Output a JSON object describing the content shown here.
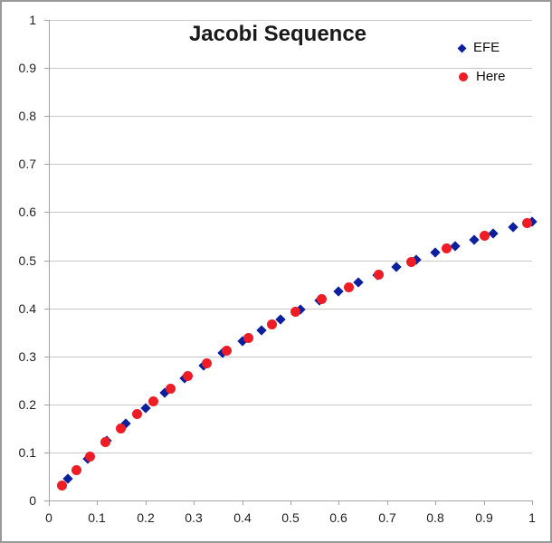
{
  "chart_data": {
    "type": "scatter",
    "title": "Jacobi Sequence",
    "xlabel": "",
    "ylabel": "",
    "xlim": [
      0,
      1
    ],
    "ylim": [
      0,
      1
    ],
    "x_tick_labels": [
      "0",
      "0.1",
      "0.2",
      "0.3",
      "0.4",
      "0.5",
      "0.6",
      "0.7",
      "0.8",
      "0.9",
      "1"
    ],
    "y_tick_labels": [
      "0",
      "0.1",
      "0.2",
      "0.3",
      "0.4",
      "0.5",
      "0.6",
      "0.7",
      "0.8",
      "0.9",
      "1"
    ],
    "grid": "horizontal-only",
    "legend_position": "top-right-inside",
    "series": [
      {
        "name": "EFE",
        "marker": "diamond",
        "color": "#0c1f9e",
        "points": [
          [
            0.04,
            0.045
          ],
          [
            0.08,
            0.086
          ],
          [
            0.12,
            0.124
          ],
          [
            0.16,
            0.16
          ],
          [
            0.2,
            0.193
          ],
          [
            0.24,
            0.225
          ],
          [
            0.28,
            0.254
          ],
          [
            0.32,
            0.281
          ],
          [
            0.36,
            0.307
          ],
          [
            0.4,
            0.331
          ],
          [
            0.44,
            0.354
          ],
          [
            0.48,
            0.376
          ],
          [
            0.52,
            0.397
          ],
          [
            0.56,
            0.416
          ],
          [
            0.6,
            0.435
          ],
          [
            0.64,
            0.453
          ],
          [
            0.68,
            0.469
          ],
          [
            0.72,
            0.486
          ],
          [
            0.76,
            0.501
          ],
          [
            0.8,
            0.516
          ],
          [
            0.84,
            0.53
          ],
          [
            0.88,
            0.543
          ],
          [
            0.92,
            0.556
          ],
          [
            0.96,
            0.568
          ],
          [
            1.0,
            0.58
          ]
        ]
      },
      {
        "name": "Here",
        "marker": "circle",
        "color": "#ee1c25",
        "points": [
          [
            0.028,
            0.032
          ],
          [
            0.057,
            0.063
          ],
          [
            0.085,
            0.091
          ],
          [
            0.117,
            0.121
          ],
          [
            0.148,
            0.15
          ],
          [
            0.182,
            0.179
          ],
          [
            0.216,
            0.206
          ],
          [
            0.251,
            0.233
          ],
          [
            0.287,
            0.259
          ],
          [
            0.327,
            0.286
          ],
          [
            0.368,
            0.312
          ],
          [
            0.412,
            0.338
          ],
          [
            0.461,
            0.366
          ],
          [
            0.511,
            0.392
          ],
          [
            0.565,
            0.419
          ],
          [
            0.621,
            0.444
          ],
          [
            0.682,
            0.47
          ],
          [
            0.75,
            0.497
          ],
          [
            0.823,
            0.524
          ],
          [
            0.902,
            0.55
          ],
          [
            0.99,
            0.577
          ]
        ]
      }
    ]
  },
  "colors": {
    "gridline": "#c9c9c9",
    "axis": "#a3a3a3",
    "text": "#1f1f1f",
    "frame_border": "#9a9a9a",
    "background": "#ffffff"
  }
}
